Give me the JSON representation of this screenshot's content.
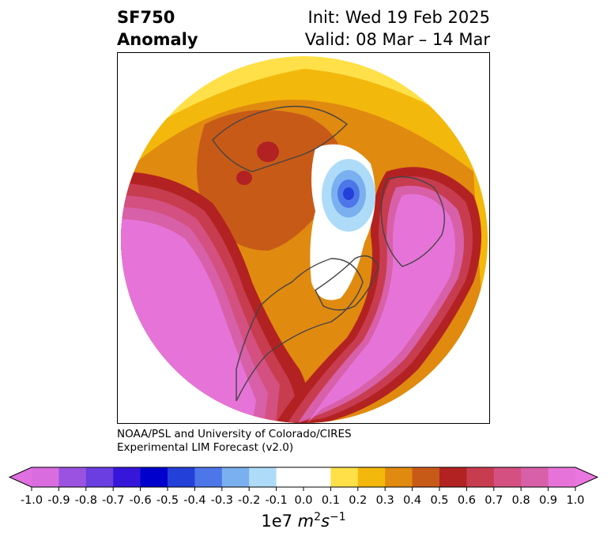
{
  "title": {
    "left_line1": "SF750",
    "left_line2": "Anomaly",
    "right_line1": "Init: Wed 19 Feb 2025",
    "right_line2": "Valid: 08 Mar – 14 Mar"
  },
  "credit": {
    "line1": "NOAA/PSL and University of Colorado/CIRES",
    "line2": "Experimental LIM Forecast (v2.0)"
  },
  "colorbar": {
    "ticks": [
      "-1.0",
      "-0.9",
      "-0.8",
      "-0.7",
      "-0.6",
      "-0.5",
      "-0.4",
      "-0.3",
      "-0.2",
      "-0.1",
      "0.0",
      "0.1",
      "0.2",
      "0.3",
      "0.4",
      "0.5",
      "0.6",
      "0.7",
      "0.8",
      "0.9",
      "1.0"
    ],
    "under_color": "#e070e0",
    "over_color": "#e878e0",
    "colors": [
      "#d96de0",
      "#9b52e0",
      "#6a3ee0",
      "#3616d8",
      "#0000cc",
      "#2340d8",
      "#4d76e8",
      "#7ab0f0",
      "#aedcf8",
      "#ffffff",
      "#ffffff",
      "#ffe048",
      "#f3b80c",
      "#e08a10",
      "#c85a18",
      "#b22222",
      "#c83c50",
      "#d45080",
      "#d860a8",
      "#e674d8"
    ],
    "unit_prefix": "1e7 ",
    "unit_m": "m",
    "unit_m_exp": "2",
    "unit_s": "s",
    "unit_s_exp": "−1"
  },
  "map": {
    "projection": "north-polar-stereographic",
    "anomaly_colors": {
      "strong_positive": "#e674d8",
      "positive_rim_dark": "#b22222",
      "positive_mid": "#c85a18",
      "positive_moderate": "#e08a10",
      "positive_low": "#f3b80c",
      "positive_weak": "#ffe048",
      "negative_weak": "#aedcf8",
      "negative_mid": "#4d76e8",
      "negative_core": "#2340d8"
    }
  }
}
